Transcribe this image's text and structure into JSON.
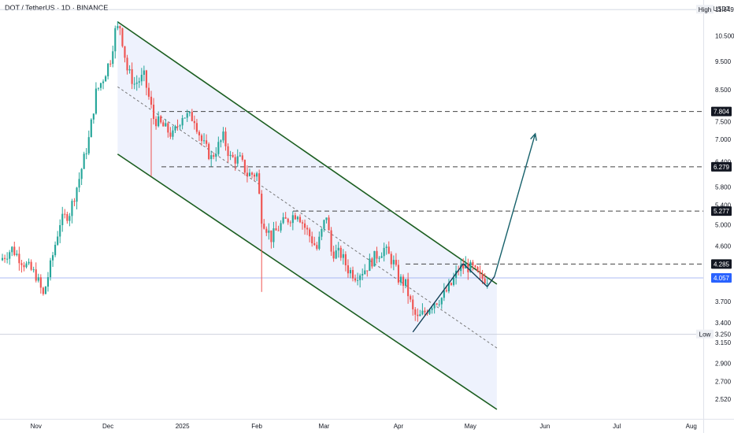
{
  "header": {
    "title": "DOT / TetherUS · 1D · BINANCE",
    "currency": "USDT"
  },
  "colors": {
    "up": "#26a69a",
    "down": "#ef5350",
    "channel": "#1b5e20",
    "channel_fill": "#eef2fd",
    "arrow": "#17616b",
    "price_line": "#2962ff",
    "dash": "#444444"
  },
  "chart_data": {
    "type": "candlestick",
    "y_scale": "log",
    "ylim": [
      2.42,
      11.8
    ],
    "y_ticks": [
      11.649,
      10.5,
      9.5,
      8.5,
      7.804,
      7.5,
      7.0,
      6.4,
      6.279,
      5.8,
      5.4,
      5.277,
      5.0,
      4.6,
      4.285,
      4.057,
      3.7,
      3.4,
      3.25,
      3.15,
      2.9,
      2.7,
      2.52
    ],
    "x_labels": [
      "Nov",
      "Dec",
      "2025",
      "Feb",
      "Mar",
      "Apr",
      "May",
      "Jun",
      "Jul",
      "Aug"
    ],
    "x_label_dates": [
      "2024-11-01",
      "2024-12-01",
      "2025-01-01",
      "2025-02-01",
      "2025-03-01",
      "2025-04-01",
      "2025-05-01",
      "2025-06-01",
      "2025-07-01",
      "2025-08-01"
    ],
    "xlim": [
      "2024-10-17",
      "2025-08-06"
    ],
    "labelled_levels": [
      {
        "label": "High",
        "value": 11.649,
        "style": "hline"
      },
      {
        "value": 7.804,
        "style": "dashed"
      },
      {
        "value": 6.279,
        "style": "dashed"
      },
      {
        "value": 5.277,
        "style": "dashed"
      },
      {
        "value": 4.285,
        "style": "dashed"
      },
      {
        "value": 4.057,
        "style": "current"
      },
      {
        "label": "Low",
        "value": 3.25,
        "style": "hline"
      }
    ],
    "anchors": [
      [
        "2024-10-17",
        4.35
      ],
      [
        "2024-10-22",
        4.55
      ],
      [
        "2024-10-27",
        4.3
      ],
      [
        "2024-11-01",
        4.1
      ],
      [
        "2024-11-04",
        3.78
      ],
      [
        "2024-11-07",
        4.25
      ],
      [
        "2024-11-11",
        5.05
      ],
      [
        "2024-11-15",
        5.25
      ],
      [
        "2024-11-19",
        6.0
      ],
      [
        "2024-11-23",
        7.0
      ],
      [
        "2024-11-26",
        8.4
      ],
      [
        "2024-11-29",
        8.9
      ],
      [
        "2024-12-02",
        9.6
      ],
      [
        "2024-12-04",
        10.7
      ],
      [
        "2024-12-06",
        10.9
      ],
      [
        "2024-12-09",
        9.2
      ],
      [
        "2024-12-12",
        8.7
      ],
      [
        "2024-12-16",
        8.95
      ],
      [
        "2024-12-20",
        7.6
      ],
      [
        "2024-12-24",
        7.35
      ],
      [
        "2024-12-28",
        7.1
      ],
      [
        "2025-01-01",
        7.7
      ],
      [
        "2025-01-06",
        7.6
      ],
      [
        "2025-01-09",
        6.95
      ],
      [
        "2025-01-13",
        6.5
      ],
      [
        "2025-01-18",
        7.05
      ],
      [
        "2025-01-21",
        6.5
      ],
      [
        "2025-01-25",
        6.45
      ],
      [
        "2025-01-28",
        6.1
      ],
      [
        "2025-02-01",
        6.1
      ],
      [
        "2025-02-03",
        5.15
      ],
      [
        "2025-02-07",
        4.75
      ],
      [
        "2025-02-11",
        5.0
      ],
      [
        "2025-02-15",
        5.15
      ],
      [
        "2025-02-18",
        5.25
      ],
      [
        "2025-02-21",
        4.95
      ],
      [
        "2025-02-26",
        4.55
      ],
      [
        "2025-03-02",
        5.2
      ],
      [
        "2025-03-04",
        4.5
      ],
      [
        "2025-03-08",
        4.45
      ],
      [
        "2025-03-11",
        4.2
      ],
      [
        "2025-03-14",
        4.1
      ],
      [
        "2025-03-18",
        4.2
      ],
      [
        "2025-03-22",
        4.4
      ],
      [
        "2025-03-26",
        4.55
      ],
      [
        "2025-03-30",
        4.3
      ],
      [
        "2025-04-01",
        4.05
      ],
      [
        "2025-04-04",
        3.95
      ],
      [
        "2025-04-07",
        3.55
      ],
      [
        "2025-04-09",
        3.45
      ],
      [
        "2025-04-12",
        3.55
      ],
      [
        "2025-04-16",
        3.7
      ],
      [
        "2025-04-19",
        3.75
      ],
      [
        "2025-04-23",
        3.95
      ],
      [
        "2025-04-26",
        4.2
      ],
      [
        "2025-04-29",
        4.25
      ],
      [
        "2025-05-02",
        4.2
      ],
      [
        "2025-05-05",
        4.05
      ],
      [
        "2025-05-08",
        4.05
      ]
    ],
    "channel": {
      "upper": [
        [
          "2024-12-05",
          11.1
        ],
        [
          "2025-05-12",
          3.96
        ]
      ],
      "lower": [
        [
          "2024-12-05",
          6.6
        ],
        [
          "2025-05-12",
          2.42
        ]
      ],
      "mid": [
        [
          "2024-12-05",
          8.6
        ],
        [
          "2025-05-12",
          3.08
        ]
      ]
    },
    "trendlines": [
      [
        [
          "2025-04-07",
          3.28
        ],
        [
          "2025-04-28",
          4.29
        ]
      ],
      [
        [
          "2025-04-28",
          4.29
        ],
        [
          "2025-05-08",
          3.92
        ]
      ],
      [
        [
          "2025-05-08",
          3.92
        ],
        [
          "2025-05-11",
          4.08
        ]
      ]
    ],
    "arrow": {
      "from": [
        "2025-05-11",
        4.08
      ],
      "to": [
        "2025-05-28",
        7.15
      ]
    }
  }
}
